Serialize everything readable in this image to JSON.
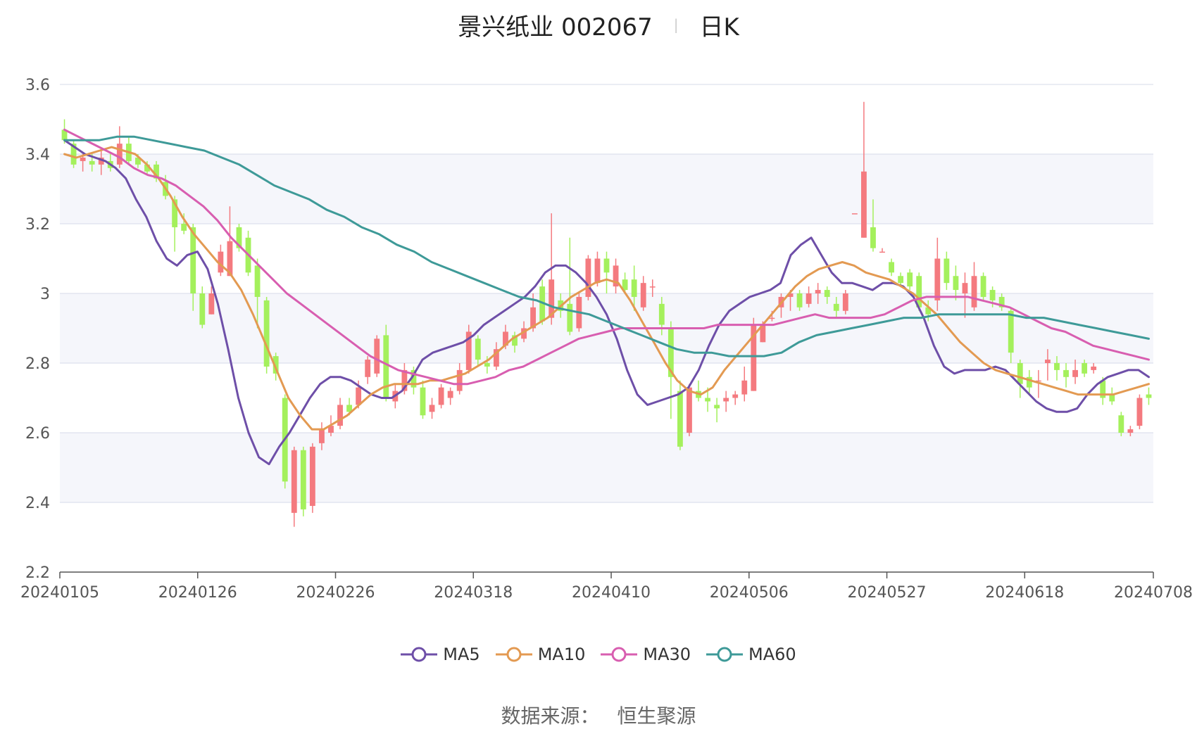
{
  "header": {
    "title": "景兴纸业 002067",
    "separator": "|",
    "subtitle": "日K"
  },
  "footer": {
    "source_label": "数据来源：",
    "source_value": "恒生聚源"
  },
  "colors": {
    "up": "#f47a7f",
    "down": "#a4f05c",
    "MA5": "#6e4fa8",
    "MA10": "#e39a52",
    "MA30": "#d85eb0",
    "MA60": "#3e9a98",
    "grid": "#d6dbe8",
    "band": "#f5f6fb"
  },
  "chart_data": {
    "type": "candlestick",
    "title": "景兴纸业 002067",
    "subtitle": "日K",
    "ylim": [
      2.2,
      3.6
    ],
    "yticks": [
      2.2,
      2.4,
      2.6,
      2.8,
      3.0,
      3.2,
      3.4,
      3.6
    ],
    "ytick_labels": [
      "2.2",
      "2.4",
      "2.6",
      "2.8",
      "3",
      "3.2",
      "3.4",
      "3.6"
    ],
    "xtick_labels": [
      "20240105",
      "20240126",
      "20240226",
      "20240318",
      "20240410",
      "20240506",
      "20240527",
      "20240618",
      "20240708"
    ],
    "xtick_index": [
      0,
      15,
      30,
      45,
      60,
      75,
      90,
      105,
      119
    ],
    "legend_position": "bottom",
    "candles": [
      [
        3.47,
        3.44,
        3.5,
        3.43
      ],
      [
        3.43,
        3.37,
        3.44,
        3.36
      ],
      [
        3.38,
        3.39,
        3.4,
        3.35
      ],
      [
        3.38,
        3.37,
        3.4,
        3.35
      ],
      [
        3.37,
        3.39,
        3.41,
        3.34
      ],
      [
        3.38,
        3.36,
        3.4,
        3.35
      ],
      [
        3.37,
        3.43,
        3.48,
        3.36
      ],
      [
        3.43,
        3.38,
        3.45,
        3.37
      ],
      [
        3.39,
        3.37,
        3.4,
        3.36
      ],
      [
        3.37,
        3.35,
        3.38,
        3.34
      ],
      [
        3.37,
        3.33,
        3.38,
        3.32
      ],
      [
        3.32,
        3.28,
        3.34,
        3.27
      ],
      [
        3.27,
        3.19,
        3.28,
        3.12
      ],
      [
        3.2,
        3.18,
        3.23,
        3.17
      ],
      [
        3.19,
        3.0,
        3.2,
        2.95
      ],
      [
        3.0,
        2.91,
        3.02,
        2.9
      ],
      [
        2.94,
        3.0,
        3.02,
        2.94
      ],
      [
        3.06,
        3.12,
        3.14,
        3.05
      ],
      [
        3.05,
        3.15,
        3.25,
        3.05
      ],
      [
        3.19,
        3.13,
        3.2,
        3.12
      ],
      [
        3.16,
        3.06,
        3.18,
        3.05
      ],
      [
        3.08,
        2.99,
        3.1,
        2.9
      ],
      [
        2.98,
        2.79,
        2.99,
        2.77
      ],
      [
        2.82,
        2.77,
        2.83,
        2.75
      ],
      [
        2.7,
        2.46,
        2.71,
        2.44
      ],
      [
        2.37,
        2.55,
        2.56,
        2.33
      ],
      [
        2.55,
        2.38,
        2.56,
        2.36
      ],
      [
        2.39,
        2.56,
        2.57,
        2.37
      ],
      [
        2.57,
        2.61,
        2.63,
        2.55
      ],
      [
        2.6,
        2.62,
        2.65,
        2.59
      ],
      [
        2.62,
        2.68,
        2.7,
        2.61
      ],
      [
        2.68,
        2.66,
        2.7,
        2.65
      ],
      [
        2.68,
        2.73,
        2.75,
        2.67
      ],
      [
        2.76,
        2.81,
        2.82,
        2.74
      ],
      [
        2.77,
        2.87,
        2.88,
        2.76
      ],
      [
        2.88,
        2.7,
        2.91,
        2.69
      ],
      [
        2.69,
        2.72,
        2.74,
        2.67
      ],
      [
        2.72,
        2.78,
        2.8,
        2.71
      ],
      [
        2.78,
        2.73,
        2.79,
        2.71
      ],
      [
        2.73,
        2.65,
        2.75,
        2.64
      ],
      [
        2.66,
        2.68,
        2.7,
        2.64
      ],
      [
        2.68,
        2.73,
        2.74,
        2.67
      ],
      [
        2.7,
        2.72,
        2.73,
        2.68
      ],
      [
        2.72,
        2.78,
        2.8,
        2.71
      ],
      [
        2.78,
        2.89,
        2.91,
        2.77
      ],
      [
        2.87,
        2.81,
        2.88,
        2.79
      ],
      [
        2.8,
        2.79,
        2.82,
        2.77
      ],
      [
        2.79,
        2.84,
        2.86,
        2.78
      ],
      [
        2.85,
        2.89,
        2.91,
        2.84
      ],
      [
        2.88,
        2.85,
        2.89,
        2.83
      ],
      [
        2.87,
        2.9,
        2.92,
        2.86
      ],
      [
        2.9,
        2.96,
        3.0,
        2.89
      ],
      [
        3.02,
        2.92,
        3.04,
        2.91
      ],
      [
        2.93,
        3.04,
        3.23,
        2.91
      ],
      [
        2.98,
        2.95,
        3.0,
        2.93
      ],
      [
        2.97,
        2.89,
        3.16,
        2.88
      ],
      [
        2.9,
        2.99,
        3.0,
        2.89
      ],
      [
        2.99,
        3.1,
        3.11,
        2.98
      ],
      [
        3.03,
        3.1,
        3.12,
        3.02
      ],
      [
        3.1,
        3.06,
        3.12,
        3.0
      ],
      [
        3.02,
        3.08,
        3.1,
        3.0
      ],
      [
        3.04,
        3.01,
        3.06,
        3.0
      ],
      [
        3.04,
        2.99,
        3.08,
        2.95
      ],
      [
        2.96,
        3.03,
        3.05,
        2.95
      ],
      [
        3.02,
        3.02,
        3.04,
        2.99
      ],
      [
        2.97,
        2.91,
        2.99,
        2.88
      ],
      [
        2.9,
        2.76,
        2.92,
        2.64
      ],
      [
        2.72,
        2.56,
        2.75,
        2.55
      ],
      [
        2.6,
        2.73,
        2.74,
        2.59
      ],
      [
        2.72,
        2.7,
        2.75,
        2.69
      ],
      [
        2.7,
        2.69,
        2.73,
        2.66
      ],
      [
        2.68,
        2.67,
        2.7,
        2.63
      ],
      [
        2.69,
        2.7,
        2.72,
        2.66
      ],
      [
        2.7,
        2.71,
        2.72,
        2.68
      ],
      [
        2.71,
        2.75,
        2.79,
        2.69
      ],
      [
        2.72,
        2.91,
        2.93,
        2.72
      ],
      [
        2.86,
        2.91,
        2.92,
        2.86
      ],
      [
        2.93,
        2.93,
        2.95,
        2.92
      ],
      [
        2.96,
        2.99,
        3.0,
        2.93
      ],
      [
        2.99,
        3.0,
        3.01,
        2.95
      ],
      [
        3.0,
        2.96,
        3.01,
        2.95
      ],
      [
        2.97,
        3.0,
        3.02,
        2.96
      ],
      [
        3.0,
        3.01,
        3.03,
        2.97
      ],
      [
        3.01,
        2.99,
        3.02,
        2.97
      ],
      [
        2.97,
        2.95,
        2.99,
        2.93
      ],
      [
        2.95,
        3.0,
        3.01,
        2.94
      ],
      [
        3.23,
        3.23,
        3.23,
        3.23
      ],
      [
        3.16,
        3.35,
        3.55,
        3.16
      ],
      [
        3.19,
        3.13,
        3.27,
        3.12
      ],
      [
        3.12,
        3.12,
        3.13,
        3.12
      ],
      [
        3.09,
        3.06,
        3.1,
        3.05
      ],
      [
        3.05,
        3.03,
        3.06,
        3.02
      ],
      [
        3.06,
        3.02,
        3.07,
        3.01
      ],
      [
        3.05,
        2.96,
        3.06,
        2.95
      ],
      [
        2.96,
        2.94,
        2.98,
        2.92
      ],
      [
        2.98,
        3.1,
        3.16,
        2.95
      ],
      [
        3.1,
        3.03,
        3.12,
        3.01
      ],
      [
        3.05,
        3.01,
        3.08,
        2.98
      ],
      [
        3.0,
        3.03,
        3.06,
        2.93
      ],
      [
        2.96,
        3.05,
        3.09,
        2.95
      ],
      [
        3.05,
        2.99,
        3.06,
        2.98
      ],
      [
        3.01,
        2.98,
        3.02,
        2.96
      ],
      [
        2.99,
        2.96,
        3.0,
        2.95
      ],
      [
        2.95,
        2.83,
        2.96,
        2.8
      ],
      [
        2.8,
        2.74,
        2.81,
        2.7
      ],
      [
        2.76,
        2.73,
        2.78,
        2.71
      ],
      [
        2.75,
        2.75,
        2.78,
        2.7
      ],
      [
        2.8,
        2.81,
        2.84,
        2.75
      ],
      [
        2.8,
        2.78,
        2.82,
        2.75
      ],
      [
        2.78,
        2.76,
        2.8,
        2.73
      ],
      [
        2.76,
        2.78,
        2.81,
        2.74
      ],
      [
        2.8,
        2.77,
        2.81,
        2.76
      ],
      [
        2.78,
        2.79,
        2.8,
        2.77
      ],
      [
        2.75,
        2.7,
        2.76,
        2.68
      ],
      [
        2.71,
        2.69,
        2.73,
        2.68
      ],
      [
        2.65,
        2.6,
        2.66,
        2.59
      ],
      [
        2.6,
        2.61,
        2.62,
        2.59
      ],
      [
        2.62,
        2.7,
        2.71,
        2.61
      ],
      [
        2.71,
        2.7,
        2.73,
        2.68
      ]
    ],
    "series": [
      {
        "name": "MA5",
        "values": [
          3.44,
          3.42,
          3.4,
          3.39,
          3.38,
          3.36,
          3.33,
          3.27,
          3.22,
          3.15,
          3.1,
          3.08,
          3.11,
          3.12,
          3.07,
          2.97,
          2.84,
          2.7,
          2.6,
          2.53,
          2.51,
          2.56,
          2.6,
          2.65,
          2.7,
          2.74,
          2.76,
          2.76,
          2.75,
          2.73,
          2.71,
          2.7,
          2.7,
          2.72,
          2.76,
          2.81,
          2.83,
          2.84,
          2.85,
          2.86,
          2.88,
          2.91,
          2.93,
          2.95,
          2.97,
          2.99,
          3.02,
          3.06,
          3.08,
          3.08,
          3.06,
          3.03,
          2.99,
          2.94,
          2.87,
          2.78,
          2.71,
          2.68,
          2.69,
          2.7,
          2.71,
          2.73,
          2.78,
          2.85,
          2.91,
          2.95,
          2.97,
          2.99,
          3.0,
          3.01,
          3.03,
          3.11,
          3.14,
          3.16,
          3.11,
          3.06,
          3.03,
          3.03,
          3.02,
          3.01,
          3.03,
          3.03,
          3.02,
          2.99,
          2.93,
          2.85,
          2.79,
          2.77,
          2.78,
          2.78,
          2.78,
          2.79,
          2.78,
          2.75,
          2.72,
          2.69,
          2.67,
          2.66,
          2.66,
          2.67,
          2.71,
          2.74,
          2.76,
          2.77,
          2.78,
          2.78,
          2.76
        ]
      },
      {
        "name": "MA10",
        "values": [
          3.4,
          3.39,
          3.4,
          3.41,
          3.42,
          3.41,
          3.4,
          3.37,
          3.33,
          3.28,
          3.22,
          3.17,
          3.13,
          3.09,
          3.06,
          3.01,
          2.94,
          2.86,
          2.78,
          2.7,
          2.65,
          2.61,
          2.61,
          2.63,
          2.65,
          2.68,
          2.71,
          2.73,
          2.74,
          2.74,
          2.74,
          2.75,
          2.75,
          2.76,
          2.77,
          2.79,
          2.81,
          2.84,
          2.87,
          2.89,
          2.91,
          2.93,
          2.96,
          2.99,
          3.01,
          3.03,
          3.04,
          3.03,
          2.98,
          2.92,
          2.86,
          2.8,
          2.75,
          2.72,
          2.71,
          2.73,
          2.78,
          2.82,
          2.86,
          2.9,
          2.94,
          2.98,
          3.02,
          3.05,
          3.07,
          3.08,
          3.09,
          3.08,
          3.06,
          3.05,
          3.04,
          3.02,
          3.0,
          2.97,
          2.94,
          2.9,
          2.86,
          2.83,
          2.8,
          2.78,
          2.77,
          2.76,
          2.75,
          2.74,
          2.73,
          2.72,
          2.71,
          2.71,
          2.71,
          2.71,
          2.72,
          2.73,
          2.74
        ]
      },
      {
        "name": "MA30",
        "values": [
          3.47,
          3.45,
          3.43,
          3.41,
          3.39,
          3.36,
          3.34,
          3.33,
          3.31,
          3.28,
          3.25,
          3.21,
          3.16,
          3.12,
          3.08,
          3.04,
          3.0,
          2.97,
          2.94,
          2.91,
          2.88,
          2.85,
          2.82,
          2.8,
          2.78,
          2.77,
          2.76,
          2.75,
          2.74,
          2.74,
          2.75,
          2.76,
          2.78,
          2.79,
          2.81,
          2.83,
          2.85,
          2.87,
          2.88,
          2.89,
          2.9,
          2.9,
          2.9,
          2.9,
          2.9,
          2.9,
          2.9,
          2.91,
          2.91,
          2.91,
          2.91,
          2.91,
          2.92,
          2.93,
          2.94,
          2.93,
          2.93,
          2.93,
          2.93,
          2.94,
          2.96,
          2.98,
          2.99,
          2.99,
          2.99,
          2.99,
          2.98,
          2.97,
          2.96,
          2.94,
          2.92,
          2.9,
          2.89,
          2.87,
          2.85,
          2.84,
          2.83,
          2.82,
          2.81
        ]
      },
      {
        "name": "MA60",
        "values": [
          3.44,
          3.44,
          3.44,
          3.45,
          3.45,
          3.44,
          3.43,
          3.42,
          3.41,
          3.39,
          3.37,
          3.34,
          3.31,
          3.29,
          3.27,
          3.24,
          3.22,
          3.19,
          3.17,
          3.14,
          3.12,
          3.09,
          3.07,
          3.05,
          3.03,
          3.01,
          2.99,
          2.98,
          2.96,
          2.95,
          2.94,
          2.92,
          2.9,
          2.88,
          2.86,
          2.84,
          2.83,
          2.83,
          2.82,
          2.82,
          2.82,
          2.83,
          2.86,
          2.88,
          2.89,
          2.9,
          2.91,
          2.92,
          2.93,
          2.93,
          2.94,
          2.94,
          2.94,
          2.94,
          2.94,
          2.93,
          2.93,
          2.92,
          2.91,
          2.9,
          2.89,
          2.88,
          2.87
        ]
      }
    ]
  }
}
